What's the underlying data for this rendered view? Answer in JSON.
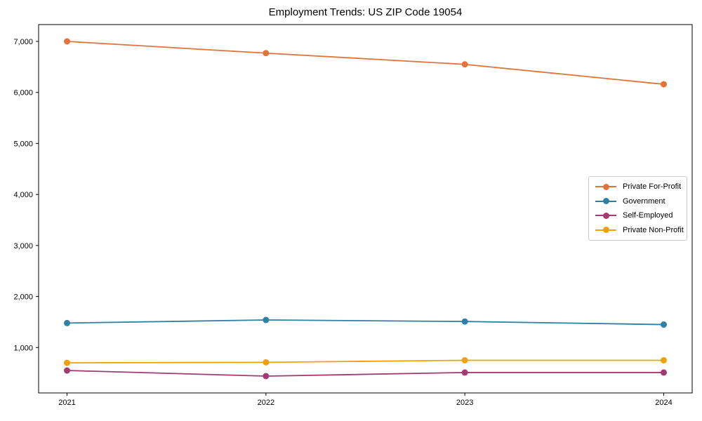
{
  "chart_data": {
    "type": "line",
    "title": "Employment Trends: US ZIP Code 19054",
    "xlabel": "",
    "ylabel": "",
    "grid": false,
    "legend_position": "center right",
    "x": [
      2021,
      2022,
      2023,
      2024
    ],
    "x_tick_labels": [
      "2021",
      "2022",
      "2023",
      "2024"
    ],
    "xlim": [
      2020.857,
      2024.143
    ],
    "ylim": [
      110,
      7330
    ],
    "yticks": [
      1000,
      2000,
      3000,
      4000,
      5000,
      6000,
      7000
    ],
    "ytick_labels": [
      "1,000",
      "2,000",
      "3,000",
      "4,000",
      "5,000",
      "6,000",
      "7,000"
    ],
    "series": [
      {
        "name": "Private For-Profit",
        "color": "#E0743B",
        "values": [
          7000,
          6770,
          6550,
          6160
        ]
      },
      {
        "name": "Government",
        "color": "#2E81A2",
        "values": [
          1480,
          1540,
          1510,
          1450
        ]
      },
      {
        "name": "Self-Employed",
        "color": "#A23B72",
        "values": [
          550,
          440,
          510,
          510
        ]
      },
      {
        "name": "Private Non-Profit",
        "color": "#F2A104",
        "values": [
          700,
          710,
          750,
          750
        ]
      }
    ]
  }
}
